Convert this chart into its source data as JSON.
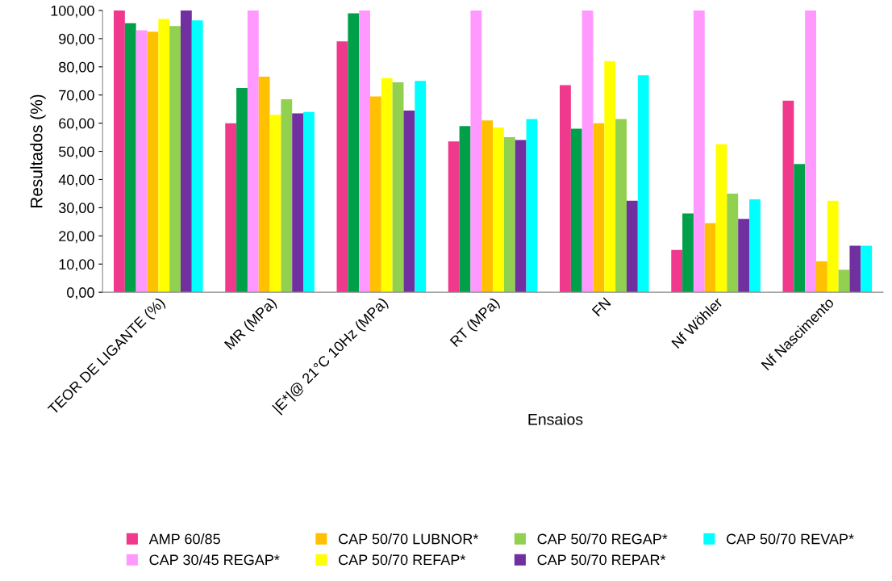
{
  "chart_data": {
    "type": "bar",
    "xlabel": "Ensaios",
    "ylabel": "Resultados (%)",
    "categories": [
      "TEOR DE LIGANTE (%)",
      "MR (MPa)",
      "|E*|@ 21°C 10Hz (MPa)",
      "RT (MPa)",
      "FN",
      "Nf Wöhler",
      "Nf Nascimento"
    ],
    "series": [
      {
        "name": "AMP 60/85",
        "color": "#f0388c",
        "values": [
          100,
          60,
          89,
          53.5,
          73.5,
          15,
          68
        ]
      },
      {
        "color": "#00a04a",
        "values": [
          95.5,
          72.5,
          99,
          59,
          58,
          28,
          45.5
        ]
      },
      {
        "name": "CAP 30/45 REGAP*",
        "color": "#ff99ff",
        "values": [
          93,
          100,
          100,
          100,
          100,
          100,
          100
        ]
      },
      {
        "name": "CAP 50/70 LUBNOR*",
        "color": "#ffc000",
        "values": [
          92.5,
          76.5,
          69.5,
          61,
          60,
          24.5,
          11
        ]
      },
      {
        "name": "CAP 50/70 REFAP*",
        "color": "#ffff00",
        "values": [
          97,
          63,
          76,
          58.5,
          82,
          52.5,
          32.5
        ]
      },
      {
        "name": "CAP 50/70 REGAP*",
        "color": "#92d050",
        "values": [
          94.5,
          68.5,
          74.5,
          55,
          61.5,
          35,
          8
        ]
      },
      {
        "name": "CAP 50/70 REPAR*",
        "color": "#7030a0",
        "values": [
          100,
          63.5,
          64.5,
          54,
          32.5,
          26,
          16.5
        ]
      },
      {
        "name": "CAP 50/70 REVAP*",
        "color": "#00ffff",
        "values": [
          96.5,
          64,
          75,
          61.5,
          77,
          33,
          16.5
        ]
      }
    ],
    "ylim": [
      0,
      100
    ],
    "yticks": [
      {
        "value": 0,
        "label": "0,00"
      },
      {
        "value": 10,
        "label": "10,00"
      },
      {
        "value": 20,
        "label": "20,00"
      },
      {
        "value": 30,
        "label": "30,00"
      },
      {
        "value": 40,
        "label": "40,00"
      },
      {
        "value": 50,
        "label": "50,00"
      },
      {
        "value": 60,
        "label": "60,00"
      },
      {
        "value": 70,
        "label": "70,00"
      },
      {
        "value": 80,
        "label": "80,00"
      },
      {
        "value": 90,
        "label": "90,00"
      },
      {
        "value": 100,
        "label": "100,00"
      }
    ],
    "grid": false,
    "legend": "bottom"
  }
}
